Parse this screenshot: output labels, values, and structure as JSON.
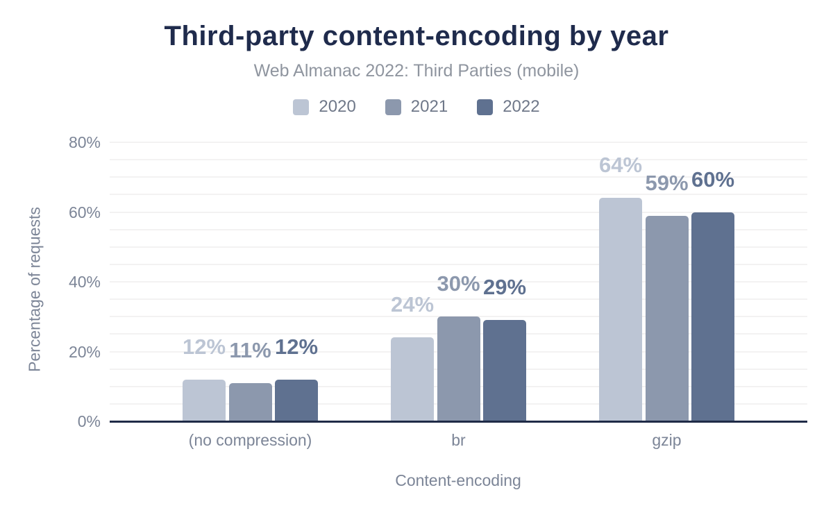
{
  "chart_data": {
    "type": "bar",
    "title": "Third-party content-encoding by year",
    "subtitle": "Web Almanac 2022: Third Parties (mobile)",
    "xlabel": "Content-encoding",
    "ylabel": "Percentage of requests",
    "categories": [
      "(no compression)",
      "br",
      "gzip"
    ],
    "series": [
      {
        "name": "2020",
        "color": "#bcc5d4",
        "values": [
          12,
          24,
          64
        ]
      },
      {
        "name": "2021",
        "color": "#8c98ad",
        "values": [
          11,
          30,
          59
        ]
      },
      {
        "name": "2022",
        "color": "#5f7190",
        "values": [
          12,
          29,
          60
        ]
      }
    ],
    "value_label_suffix": "%",
    "yticks": [
      "0%",
      "20%",
      "40%",
      "60%",
      "80%"
    ],
    "ylim": [
      0,
      80
    ],
    "grid_step": 5,
    "grid_on": true,
    "legend_position": "top",
    "colors": {
      "title": "#1f2b4c",
      "subtitle": "#8f959f",
      "axis_text": "#7c8597",
      "legend_text": "#6f7889",
      "axis_line": "#1f2b47",
      "grid_line": "#f3f2f2",
      "background": "#ffffff"
    }
  }
}
